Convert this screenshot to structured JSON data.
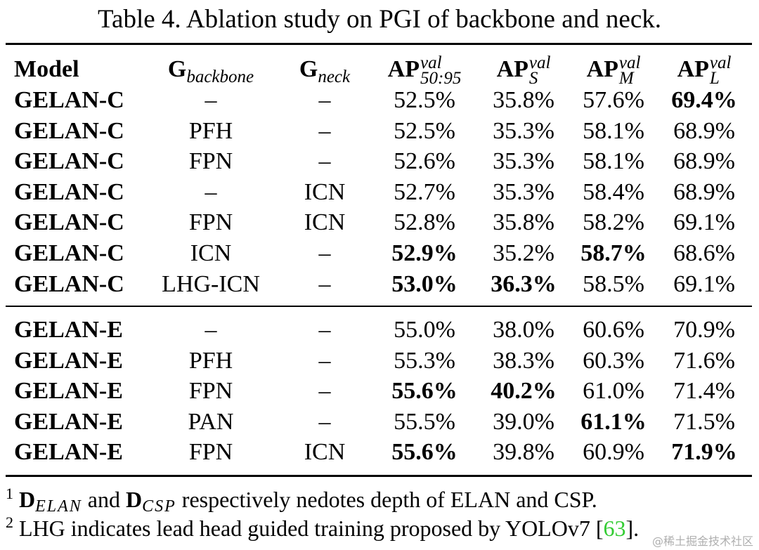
{
  "title": "Table 4. Ablation study on PGI of backbone and neck.",
  "header": [
    {
      "base": "Model"
    },
    {
      "base": "G",
      "sub": "backbone"
    },
    {
      "base": "G",
      "sub": "neck"
    },
    {
      "base": "AP",
      "sup": "val",
      "sub": "50:95"
    },
    {
      "base": "AP",
      "sup": "val",
      "sub": "S"
    },
    {
      "base": "AP",
      "sup": "val",
      "sub": "M"
    },
    {
      "base": "AP",
      "sup": "val",
      "sub": "L"
    }
  ],
  "groups": [
    {
      "rows": [
        {
          "cells": [
            "GELAN-C",
            "–",
            "–",
            "52.5%",
            "35.8%",
            "57.6%",
            "69.4%"
          ],
          "bold": [
            6
          ]
        },
        {
          "cells": [
            "GELAN-C",
            "PFH",
            "–",
            "52.5%",
            "35.3%",
            "58.1%",
            "68.9%"
          ],
          "bold": []
        },
        {
          "cells": [
            "GELAN-C",
            "FPN",
            "–",
            "52.6%",
            "35.3%",
            "58.1%",
            "68.9%"
          ],
          "bold": []
        },
        {
          "cells": [
            "GELAN-C",
            "–",
            "ICN",
            "52.7%",
            "35.3%",
            "58.4%",
            "68.9%"
          ],
          "bold": []
        },
        {
          "cells": [
            "GELAN-C",
            "FPN",
            "ICN",
            "52.8%",
            "35.8%",
            "58.2%",
            "69.1%"
          ],
          "bold": []
        },
        {
          "cells": [
            "GELAN-C",
            "ICN",
            "–",
            "52.9%",
            "35.2%",
            "58.7%",
            "68.6%"
          ],
          "bold": [
            3,
            5
          ]
        },
        {
          "cells": [
            "GELAN-C",
            "LHG-ICN",
            "–",
            "53.0%",
            "36.3%",
            "58.5%",
            "69.1%"
          ],
          "bold": [
            3,
            4
          ]
        }
      ]
    },
    {
      "rows": [
        {
          "cells": [
            "GELAN-E",
            "–",
            "–",
            "55.0%",
            "38.0%",
            "60.6%",
            "70.9%"
          ],
          "bold": []
        },
        {
          "cells": [
            "GELAN-E",
            "PFH",
            "–",
            "55.3%",
            "38.3%",
            "60.3%",
            "71.6%"
          ],
          "bold": []
        },
        {
          "cells": [
            "GELAN-E",
            "FPN",
            "–",
            "55.6%",
            "40.2%",
            "61.0%",
            "71.4%"
          ],
          "bold": [
            3,
            4
          ]
        },
        {
          "cells": [
            "GELAN-E",
            "PAN",
            "–",
            "55.5%",
            "39.0%",
            "61.1%",
            "71.5%"
          ],
          "bold": [
            5
          ]
        },
        {
          "cells": [
            "GELAN-E",
            "FPN",
            "ICN",
            "55.6%",
            "39.8%",
            "60.9%",
            "71.9%"
          ],
          "bold": [
            3,
            6
          ]
        }
      ]
    }
  ],
  "footnotes": [
    [
      {
        "text": "1",
        "style": "sup"
      },
      {
        "text": " D",
        "style": "bold"
      },
      {
        "text": "ELAN",
        "style": "sub"
      },
      {
        "text": " and ",
        "style": "plain"
      },
      {
        "text": "D",
        "style": "bold"
      },
      {
        "text": "CSP",
        "style": "sub"
      },
      {
        "text": " respectively nedotes depth of ELAN and CSP.",
        "style": "plain"
      }
    ],
    [
      {
        "text": "2",
        "style": "sup"
      },
      {
        "text": " LHG indicates lead head guided training proposed by YOLOv7 [",
        "style": "plain"
      },
      {
        "text": "63",
        "style": "link"
      },
      {
        "text": "].",
        "style": "plain"
      }
    ]
  ],
  "watermark": "@稀土掘金技术社区"
}
